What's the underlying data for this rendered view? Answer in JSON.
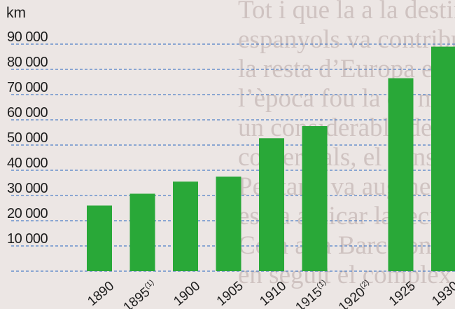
{
  "background_text": [
    "Tot i que la a la destinació de la producció",
    "espanyols va contribuir a augmentar",
    "la resta d’Europa es va intensificar",
    "l’època fou la de màxima venda a la",
    "un considerable de la comunitat",
    "comercials, el consum d’acer",
    "Per tant, va augmentar la producció",
    "es va aplicar la tecnologia moderna",
    "Com a la Barcelona es van",
    "en seguit el complex de Barcelona"
  ],
  "chart_data": {
    "type": "bar",
    "ylabel": "km",
    "ylim": [
      0,
      90000
    ],
    "yticks": [
      "10 000",
      "20 000",
      "30 000",
      "40 000",
      "50 000",
      "60 000",
      "70 000",
      "80 000",
      "90 000"
    ],
    "grid": "horizontal dashed",
    "bar_color": "#29a838",
    "grid_color": "#4f7fc7",
    "categories": [
      {
        "label": "1890",
        "sup": ""
      },
      {
        "label": "1895",
        "sup": "(1)"
      },
      {
        "label": "1900",
        "sup": ""
      },
      {
        "label": "1905",
        "sup": ""
      },
      {
        "label": "1910",
        "sup": ""
      },
      {
        "label": "1915",
        "sup": "(1)"
      },
      {
        "label": "1920",
        "sup": "(2)"
      },
      {
        "label": "1925",
        "sup": ""
      },
      {
        "label": "1930",
        "sup": ""
      }
    ],
    "values": [
      26000,
      30700,
      35500,
      37500,
      52700,
      57500,
      null,
      76500,
      89000
    ]
  }
}
